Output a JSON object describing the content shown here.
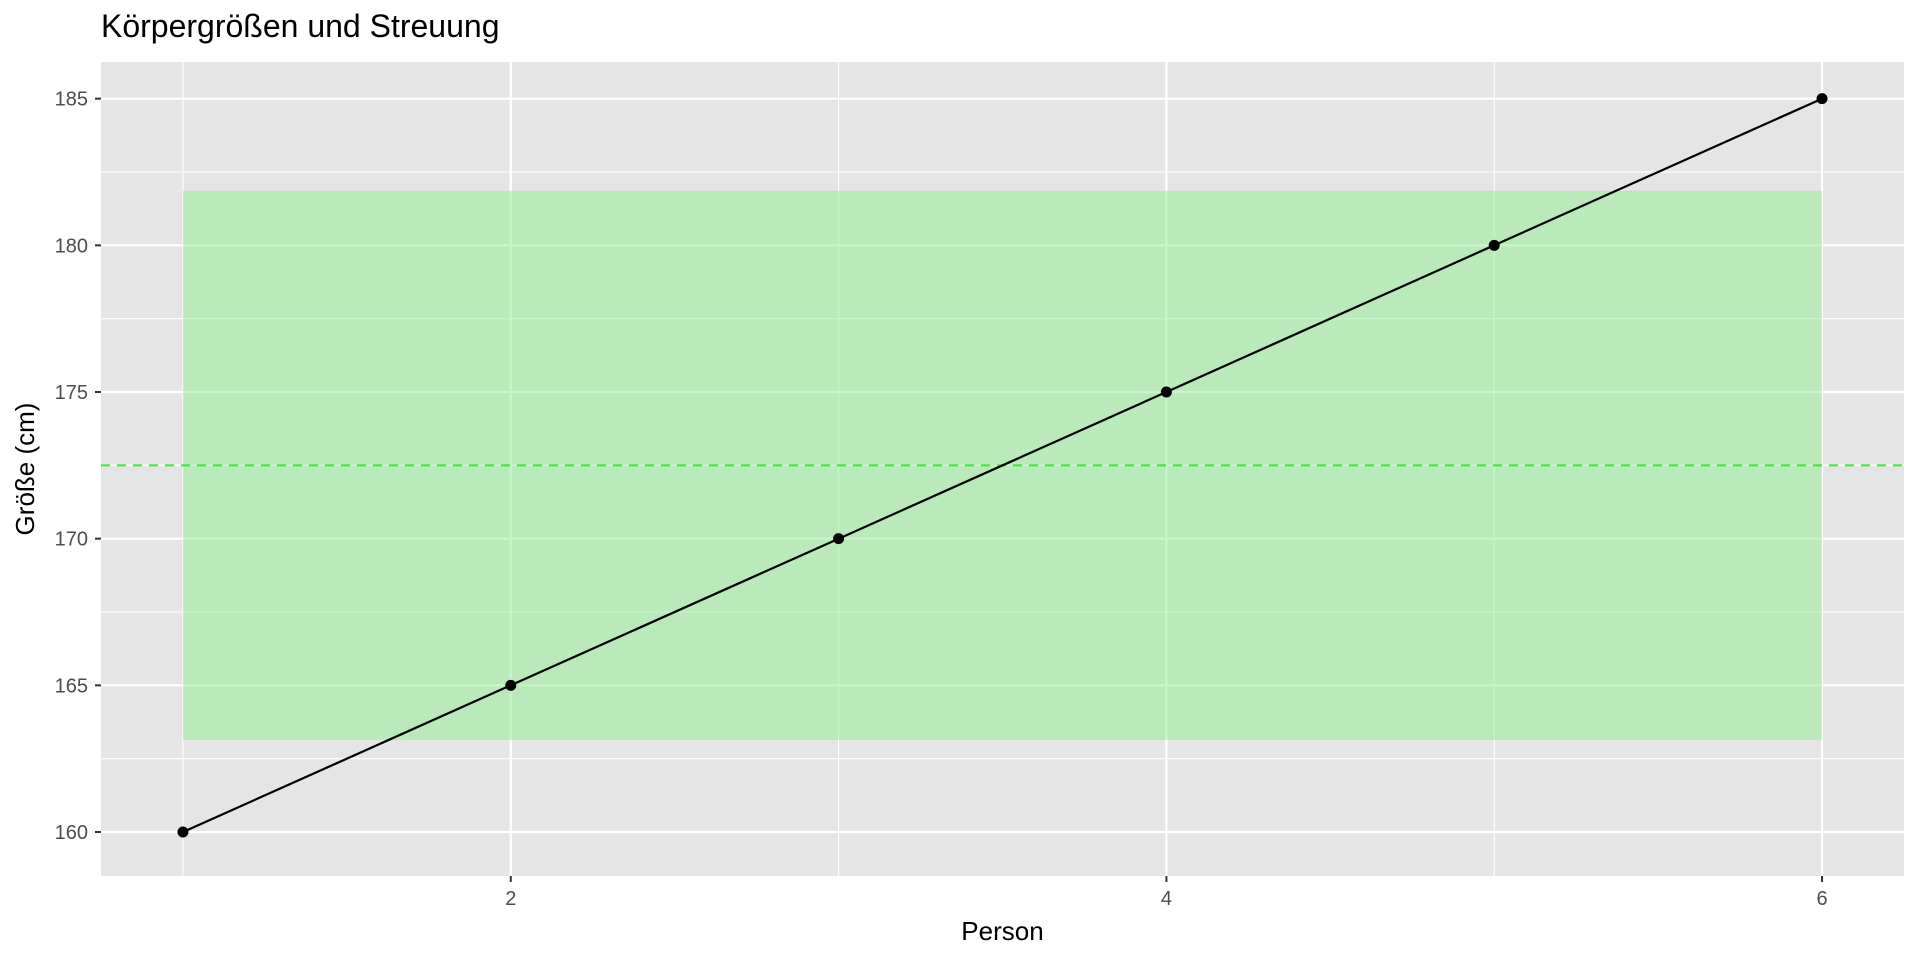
{
  "chart_data": {
    "type": "line",
    "title": "Körpergrößen und Streuung",
    "xlabel": "Person",
    "ylabel": "Größe (cm)",
    "x": [
      1,
      2,
      3,
      4,
      5,
      6
    ],
    "series": [
      {
        "values": [
          160,
          165,
          170,
          175,
          180,
          185
        ]
      }
    ],
    "xlim": [
      0.75,
      6.25
    ],
    "ylim": [
      158.5,
      186.25
    ],
    "x_ticks": [
      2,
      4,
      6
    ],
    "x_tick_labels": [
      "2",
      "4",
      "6"
    ],
    "y_ticks": [
      160,
      165,
      170,
      175,
      180,
      185
    ],
    "y_tick_labels": [
      "160",
      "165",
      "170",
      "175",
      "180",
      "185"
    ],
    "mean_line": {
      "value": 172.5
    },
    "spread_band": {
      "x_range": [
        1,
        6
      ],
      "y_range": [
        163.14,
        181.86
      ]
    },
    "grid": true,
    "colors": {
      "panel_background": "#e5e5e5",
      "grid_line": "#ffffff",
      "band_fill": "#90ee90",
      "mean_line": "#33ee33",
      "series_line": "#000000",
      "point": "#000000"
    }
  }
}
